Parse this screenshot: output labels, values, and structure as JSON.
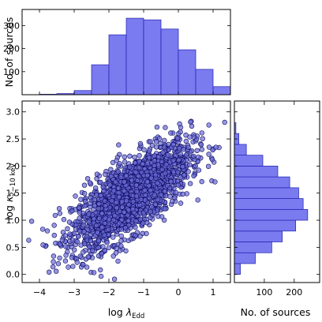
{
  "chart_data": [
    {
      "id": "top",
      "type": "bar",
      "title": "",
      "xlabel": "",
      "ylabel": "No. of sources",
      "xlim": [
        -4.5,
        1.5
      ],
      "ylim": [
        0,
        370
      ],
      "yticks": [
        100,
        200,
        300
      ],
      "bin_edges": [
        -4.5,
        -4.0,
        -3.5,
        -3.0,
        -2.5,
        -2.0,
        -1.5,
        -1.0,
        -0.5,
        0.0,
        0.5,
        1.0,
        1.5
      ],
      "values": [
        0,
        2,
        5,
        18,
        130,
        260,
        332,
        325,
        285,
        195,
        110,
        35
      ],
      "color": "#7b7bf0",
      "edge_color": "#1f1fb0"
    },
    {
      "id": "scatter",
      "type": "scatter",
      "title": "",
      "xlabel": "log λEdd",
      "xlabel_parts": {
        "main": "log ",
        "symbol": "λ",
        "sub": "Edd"
      },
      "ylabel": "log κ2−10 keV",
      "ylabel_parts": {
        "main": "log ",
        "symbol": "κ",
        "sub": "2−10 keV"
      },
      "xlim": [
        -4.5,
        1.5
      ],
      "ylim": [
        -0.15,
        3.2
      ],
      "xticks": [
        -4,
        -3,
        -2,
        -1,
        0,
        1
      ],
      "yticks": [
        0.0,
        0.5,
        1.0,
        1.5,
        2.0,
        2.5,
        3.0
      ],
      "ytick_labels": [
        "0.0",
        "0.5",
        "1.0",
        "1.5",
        "2.0",
        "2.5",
        "3.0"
      ],
      "n_points": 2000,
      "mean_x": -1.35,
      "mean_y": 1.45,
      "sd_x": 0.85,
      "sd_y": 0.48,
      "correlation": 0.72,
      "point_color": "#6b6bd6",
      "edge_color": "#0b0b5e"
    },
    {
      "id": "right",
      "type": "bar",
      "orientation": "horizontal",
      "title": "",
      "xlabel": "No. of sources",
      "ylabel": "",
      "xlim": [
        0,
        285
      ],
      "ylim": [
        -0.15,
        3.2
      ],
      "xticks": [
        100,
        200
      ],
      "bin_edges": [
        0.0,
        0.2,
        0.4,
        0.6,
        0.8,
        1.0,
        1.2,
        1.4,
        1.6,
        1.8,
        2.0,
        2.2,
        2.4,
        2.6,
        2.8
      ],
      "values": [
        20,
        70,
        125,
        160,
        205,
        245,
        230,
        215,
        185,
        145,
        95,
        40,
        15,
        5
      ],
      "color": "#7b7bf0",
      "edge_color": "#1f1fb0"
    }
  ]
}
